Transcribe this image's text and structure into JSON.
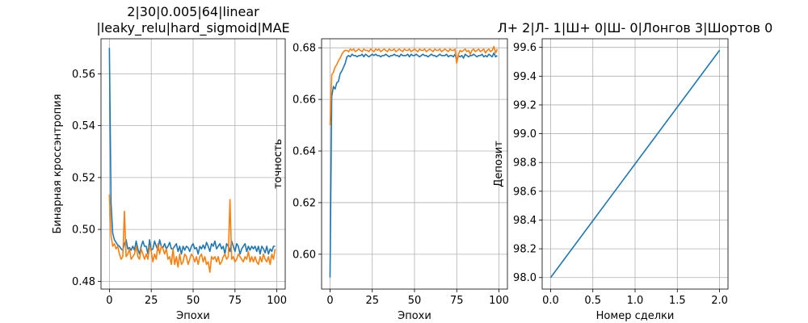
{
  "colors": {
    "series1": "#1f77b4",
    "series2": "#ff7f0e",
    "grid": "#b0b0b0"
  },
  "chart_data": [
    {
      "type": "line",
      "title": "2|30|0.005|64|linear\n|leaky_relu|hard_sigmoid|MAE",
      "xlabel": "Эпохи",
      "ylabel": "Бинарная кроссэнтропия",
      "xlim": [
        -5,
        105
      ],
      "ylim": [
        0.477,
        0.5735
      ],
      "xticks": [
        0,
        25,
        50,
        75,
        100
      ],
      "yticks": [
        0.48,
        0.5,
        0.52,
        0.54,
        0.56
      ],
      "ytick_labels": [
        "0.48",
        "0.50",
        "0.52",
        "0.54",
        "0.56"
      ],
      "grid": true,
      "series": [
        {
          "values": [
            0.57,
            0.51,
            0.4985,
            0.496,
            0.495,
            0.494,
            0.4935,
            0.4925,
            0.492,
            0.4945,
            0.496,
            0.4925,
            0.493,
            0.492,
            0.4935,
            0.492,
            0.4955,
            0.4925,
            0.4905,
            0.4935,
            0.4955,
            0.4935,
            0.4935,
            0.4905,
            0.496,
            0.492,
            0.4925,
            0.4955,
            0.4935,
            0.492,
            0.496,
            0.4935,
            0.493,
            0.4945,
            0.4925,
            0.4935,
            0.495,
            0.4925,
            0.4925,
            0.4935,
            0.4945,
            0.4915,
            0.4935,
            0.4905,
            0.4935,
            0.492,
            0.4935,
            0.493,
            0.4915,
            0.4935,
            0.4945,
            0.4925,
            0.493,
            0.4905,
            0.4935,
            0.4925,
            0.494,
            0.4925,
            0.495,
            0.4935,
            0.4915,
            0.4945,
            0.4935,
            0.4955,
            0.4925,
            0.4935,
            0.4945,
            0.4925,
            0.4935,
            0.4905,
            0.4945,
            0.4935,
            0.4915,
            0.4955,
            0.4935,
            0.4915,
            0.4945,
            0.4935,
            0.4905,
            0.4925,
            0.4935,
            0.4945,
            0.4915,
            0.4935,
            0.492,
            0.4935,
            0.4925,
            0.4935,
            0.4915,
            0.4935,
            0.4905,
            0.4935,
            0.4925,
            0.491,
            0.4935,
            0.4905,
            0.4925,
            0.4915,
            0.4935,
            0.4935
          ]
        },
        {
          "values": [
            0.5135,
            0.4975,
            0.4935,
            0.4945,
            0.4925,
            0.4935,
            0.4905,
            0.4885,
            0.4895,
            0.507,
            0.4895,
            0.4905,
            0.4925,
            0.4885,
            0.4895,
            0.4905,
            0.4935,
            0.4895,
            0.4885,
            0.4925,
            0.4905,
            0.4885,
            0.4905,
            0.4885,
            0.4935,
            0.4915,
            0.4875,
            0.4905,
            0.4885,
            0.4945,
            0.4905,
            0.4935,
            0.4925,
            0.4905,
            0.4925,
            0.4885,
            0.4895,
            0.4865,
            0.4925,
            0.4865,
            0.4895,
            0.4855,
            0.4905,
            0.4865,
            0.4875,
            0.4905,
            0.4895,
            0.4865,
            0.4885,
            0.4905,
            0.4895,
            0.4875,
            0.4895,
            0.4865,
            0.4895,
            0.4905,
            0.4875,
            0.4895,
            0.4865,
            0.4875,
            0.4835,
            0.4895,
            0.4885,
            0.4895,
            0.4875,
            0.4895,
            0.4865,
            0.4875,
            0.4895,
            0.4905,
            0.4885,
            0.4895,
            0.5115,
            0.4885,
            0.4895,
            0.4875,
            0.4885,
            0.4905,
            0.4895,
            0.4885,
            0.4875,
            0.4895,
            0.4885,
            0.4915,
            0.4875,
            0.4895,
            0.4875,
            0.4895,
            0.4875,
            0.4865,
            0.4895,
            0.4875,
            0.4905,
            0.4885,
            0.4875,
            0.4895,
            0.4865,
            0.4905,
            0.4885,
            0.4925
          ]
        }
      ]
    },
    {
      "type": "line",
      "title": "",
      "xlabel": "Эпохи",
      "ylabel": "точность",
      "xlim": [
        -5,
        105
      ],
      "ylim": [
        0.5865,
        0.6835
      ],
      "xticks": [
        0,
        25,
        50,
        75,
        100
      ],
      "yticks": [
        0.6,
        0.62,
        0.64,
        0.66,
        0.68
      ],
      "ytick_labels": [
        "0.60",
        "0.62",
        "0.64",
        "0.66",
        "0.68"
      ],
      "grid": true,
      "series": [
        {
          "values": [
            0.591,
            0.661,
            0.665,
            0.664,
            0.6665,
            0.667,
            0.67,
            0.671,
            0.6725,
            0.674,
            0.6765,
            0.677,
            0.6765,
            0.6775,
            0.677,
            0.677,
            0.6765,
            0.677,
            0.677,
            0.6775,
            0.6765,
            0.6775,
            0.677,
            0.6765,
            0.677,
            0.6775,
            0.677,
            0.6775,
            0.677,
            0.677,
            0.6765,
            0.677,
            0.677,
            0.6775,
            0.677,
            0.6765,
            0.677,
            0.677,
            0.6775,
            0.677,
            0.677,
            0.6765,
            0.6775,
            0.677,
            0.677,
            0.677,
            0.6775,
            0.6765,
            0.6775,
            0.677,
            0.677,
            0.6775,
            0.677,
            0.6765,
            0.677,
            0.6775,
            0.677,
            0.677,
            0.6765,
            0.677,
            0.6775,
            0.677,
            0.677,
            0.6765,
            0.677,
            0.6775,
            0.677,
            0.677,
            0.677,
            0.6775,
            0.6765,
            0.677,
            0.677,
            0.6765,
            0.6775,
            0.675,
            0.677,
            0.6765,
            0.677,
            0.676,
            0.6775,
            0.677,
            0.6765,
            0.677,
            0.677,
            0.6775,
            0.677,
            0.6765,
            0.677,
            0.677,
            0.6775,
            0.6765,
            0.677,
            0.6765,
            0.6775,
            0.677,
            0.6765,
            0.678,
            0.6765,
            0.677
          ]
        },
        {
          "values": [
            0.65,
            0.6695,
            0.6705,
            0.6725,
            0.6735,
            0.675,
            0.676,
            0.6775,
            0.6785,
            0.679,
            0.679,
            0.6785,
            0.6795,
            0.679,
            0.6795,
            0.6785,
            0.679,
            0.6795,
            0.679,
            0.6785,
            0.6795,
            0.679,
            0.679,
            0.6785,
            0.6795,
            0.679,
            0.6785,
            0.6795,
            0.679,
            0.6795,
            0.6785,
            0.679,
            0.6795,
            0.679,
            0.6785,
            0.6795,
            0.679,
            0.679,
            0.6795,
            0.6785,
            0.679,
            0.6795,
            0.679,
            0.6785,
            0.6795,
            0.679,
            0.679,
            0.6795,
            0.6785,
            0.679,
            0.6795,
            0.679,
            0.6785,
            0.6795,
            0.679,
            0.679,
            0.6795,
            0.6785,
            0.679,
            0.6795,
            0.679,
            0.6785,
            0.6795,
            0.679,
            0.679,
            0.6795,
            0.6785,
            0.679,
            0.6795,
            0.679,
            0.6785,
            0.6795,
            0.679,
            0.679,
            0.6795,
            0.674,
            0.6775,
            0.679,
            0.6785,
            0.679,
            0.6795,
            0.6785,
            0.679,
            0.6775,
            0.679,
            0.6795,
            0.6785,
            0.679,
            0.6795,
            0.6785,
            0.679,
            0.6795,
            0.678,
            0.679,
            0.6795,
            0.6785,
            0.679,
            0.6805,
            0.678,
            0.6795
          ]
        }
      ]
    },
    {
      "type": "line",
      "title": "Л+ 2|Л- 1|Ш+ 0|Ш- 0|Лонгов 3|Шортов 0",
      "xlabel": "Номер сделки",
      "ylabel": "Депозит",
      "xlim": [
        -0.1,
        2.1
      ],
      "ylim": [
        97.92,
        99.66
      ],
      "xticks": [
        0.0,
        0.5,
        1.0,
        1.5,
        2.0
      ],
      "xtick_labels": [
        "0.0",
        "0.5",
        "1.0",
        "1.5",
        "2.0"
      ],
      "yticks": [
        98.0,
        98.2,
        98.4,
        98.6,
        98.8,
        99.0,
        99.2,
        99.4,
        99.6
      ],
      "ytick_labels": [
        "98.0",
        "98.2",
        "98.4",
        "98.6",
        "98.8",
        "99.0",
        "99.2",
        "99.4",
        "99.6"
      ],
      "grid": true,
      "series": [
        {
          "x": [
            0,
            1,
            2
          ],
          "values": [
            98.0,
            98.79,
            99.58
          ]
        }
      ]
    }
  ]
}
